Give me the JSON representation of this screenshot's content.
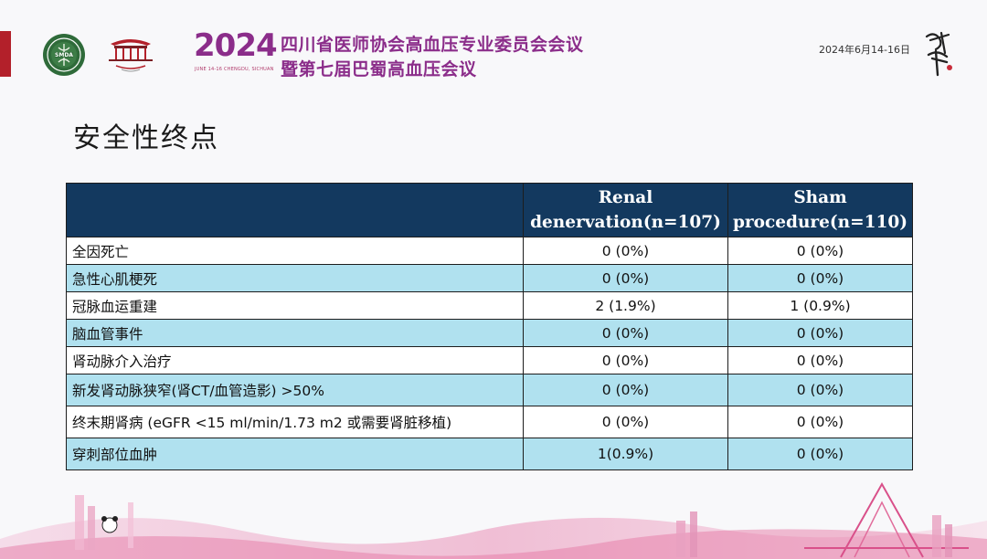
{
  "header": {
    "logo_left_text": "SMDA",
    "year": "2024",
    "year_subtitle": "JUNE 14-16   CHENGDU, SICHUAN",
    "conference_line1": "四川省医师协会高血压专业委员会会议",
    "conference_line2": "暨第七届巴蜀高血压会议",
    "date": "2024年6月14-16日"
  },
  "slide": {
    "title": "安全性终点"
  },
  "table": {
    "columns": [
      "",
      "Renal denervation(n=107)",
      "Sham procedure(n=110)"
    ],
    "rows": [
      {
        "label": "全因死亡",
        "rdn": "0 (0%)",
        "sham": "0 (0%)"
      },
      {
        "label": "急性心肌梗死",
        "rdn": "0 (0%)",
        "sham": "0 (0%)"
      },
      {
        "label": "冠脉血运重建",
        "rdn": "2 (1.9%)",
        "sham": "1 (0.9%)"
      },
      {
        "label": "脑血管事件",
        "rdn": "0 (0%)",
        "sham": "0 (0%)"
      },
      {
        "label": "肾动脉介入治疗",
        "rdn": "0 (0%)",
        "sham": "0 (0%)"
      },
      {
        "label": "新发肾动脉狭窄(肾CT/血管造影) >50%",
        "rdn": "0 (0%)",
        "sham": "0 (0%)"
      },
      {
        "label": "终末期肾病 (eGFR <15 ml/min/1.73 m2 或需要肾脏移植)",
        "rdn": "0 (0%)",
        "sham": "0 (0%)"
      },
      {
        "label": "穿刺部位血肿",
        "rdn": "1(0.9%)",
        "sham": "0 (0%)"
      }
    ]
  },
  "colors": {
    "header_row": "#13395f",
    "stripe_row": "#b0e1ef",
    "accent_red": "#b3202a",
    "conference_purple": "#8b2d8a"
  }
}
